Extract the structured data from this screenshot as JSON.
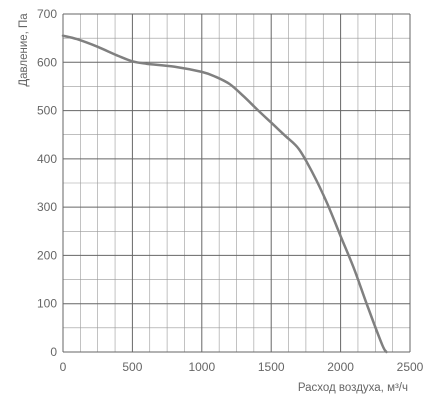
{
  "chart_data": {
    "type": "line",
    "xlabel": "Расход воздуха, м³/ч",
    "ylabel": "Давление, Па",
    "xlim": [
      0,
      2500
    ],
    "ylim": [
      0,
      700
    ],
    "x_major_ticks": [
      "0",
      "500",
      "1000",
      "1500",
      "2000",
      "2500"
    ],
    "y_major_ticks": [
      "0",
      "100",
      "200",
      "300",
      "400",
      "500",
      "600",
      "700"
    ],
    "grid": true,
    "grid_minor_x_step": 125,
    "grid_minor_y_step": 50,
    "colors": {
      "curve": "#808080",
      "grid_major": "#666666",
      "grid_minor": "#999999",
      "text": "#666666"
    },
    "series": [
      {
        "x": [
          0,
          100,
          250,
          400,
          500,
          600,
          800,
          1000,
          1100,
          1200,
          1300,
          1400,
          1500,
          1600,
          1700,
          1800,
          1900,
          2000,
          2100,
          2200,
          2300,
          2330
        ],
        "y": [
          655,
          648,
          632,
          613,
          602,
          597,
          591,
          580,
          570,
          555,
          530,
          502,
          475,
          448,
          420,
          370,
          310,
          240,
          170,
          90,
          15,
          0
        ]
      }
    ]
  }
}
